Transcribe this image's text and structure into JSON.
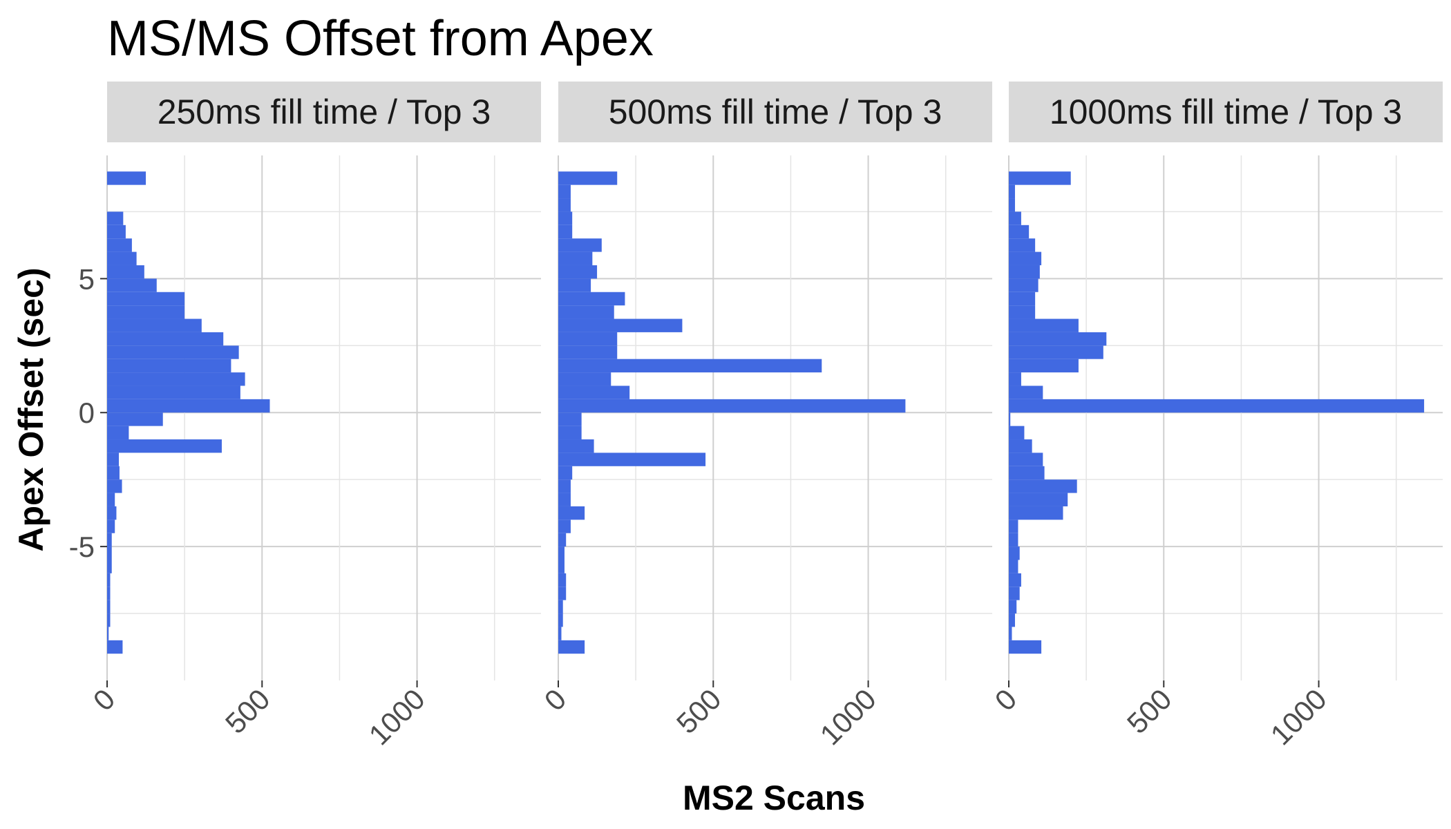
{
  "chart_data": {
    "type": "bar",
    "orientation": "horizontal",
    "title": "MS/MS Offset from Apex",
    "xlabel": "MS2 Scans",
    "ylabel": "Apex Offset (sec)",
    "xlim": [
      0,
      1400
    ],
    "ylim": [
      -10,
      9.6
    ],
    "x_ticks": [
      0,
      500,
      1000
    ],
    "x_tick_labels": [
      "0",
      "500",
      "1000"
    ],
    "y_ticks": [
      5,
      0,
      -5
    ],
    "y_tick_labels": [
      "5",
      "0",
      "-5"
    ],
    "bar_color": "#4169E1",
    "strip_color": "#D9D9D9",
    "grid": true,
    "bin_width": 0.5,
    "panels": [
      {
        "name": "250ms fill time / Top 3",
        "bins": [
          {
            "y": 8.75,
            "value": 125
          },
          {
            "y": 8.25,
            "value": 0
          },
          {
            "y": 7.75,
            "value": 0
          },
          {
            "y": 7.25,
            "value": 52
          },
          {
            "y": 6.75,
            "value": 60
          },
          {
            "y": 6.25,
            "value": 80
          },
          {
            "y": 5.75,
            "value": 95
          },
          {
            "y": 5.25,
            "value": 120
          },
          {
            "y": 4.75,
            "value": 160
          },
          {
            "y": 4.25,
            "value": 250
          },
          {
            "y": 3.75,
            "value": 250
          },
          {
            "y": 3.25,
            "value": 305
          },
          {
            "y": 2.75,
            "value": 375
          },
          {
            "y": 2.25,
            "value": 425
          },
          {
            "y": 1.75,
            "value": 400
          },
          {
            "y": 1.25,
            "value": 445
          },
          {
            "y": 0.75,
            "value": 430
          },
          {
            "y": 0.25,
            "value": 525
          },
          {
            "y": -0.25,
            "value": 180
          },
          {
            "y": -0.75,
            "value": 70
          },
          {
            "y": -1.25,
            "value": 370
          },
          {
            "y": -1.75,
            "value": 38
          },
          {
            "y": -2.25,
            "value": 40
          },
          {
            "y": -2.75,
            "value": 48
          },
          {
            "y": -3.25,
            "value": 25
          },
          {
            "y": -3.75,
            "value": 30
          },
          {
            "y": -4.25,
            "value": 25
          },
          {
            "y": -4.75,
            "value": 15
          },
          {
            "y": -5.25,
            "value": 15
          },
          {
            "y": -5.75,
            "value": 15
          },
          {
            "y": -6.25,
            "value": 10
          },
          {
            "y": -6.75,
            "value": 10
          },
          {
            "y": -7.25,
            "value": 10
          },
          {
            "y": -7.75,
            "value": 10
          },
          {
            "y": -8.25,
            "value": 5
          },
          {
            "y": -8.75,
            "value": 50
          }
        ]
      },
      {
        "name": "500ms fill time / Top 3",
        "bins": [
          {
            "y": 8.75,
            "value": 190
          },
          {
            "y": 8.25,
            "value": 40
          },
          {
            "y": 7.75,
            "value": 40
          },
          {
            "y": 7.25,
            "value": 45
          },
          {
            "y": 6.75,
            "value": 45
          },
          {
            "y": 6.25,
            "value": 140
          },
          {
            "y": 5.75,
            "value": 110
          },
          {
            "y": 5.25,
            "value": 125
          },
          {
            "y": 4.75,
            "value": 105
          },
          {
            "y": 4.25,
            "value": 215
          },
          {
            "y": 3.75,
            "value": 180
          },
          {
            "y": 3.25,
            "value": 400
          },
          {
            "y": 2.75,
            "value": 190
          },
          {
            "y": 2.25,
            "value": 190
          },
          {
            "y": 1.75,
            "value": 850
          },
          {
            "y": 1.25,
            "value": 170
          },
          {
            "y": 0.75,
            "value": 230
          },
          {
            "y": 0.25,
            "value": 1120
          },
          {
            "y": -0.25,
            "value": 75
          },
          {
            "y": -0.75,
            "value": 75
          },
          {
            "y": -1.25,
            "value": 115
          },
          {
            "y": -1.75,
            "value": 475
          },
          {
            "y": -2.25,
            "value": 45
          },
          {
            "y": -2.75,
            "value": 40
          },
          {
            "y": -3.25,
            "value": 40
          },
          {
            "y": -3.75,
            "value": 85
          },
          {
            "y": -4.25,
            "value": 40
          },
          {
            "y": -4.75,
            "value": 25
          },
          {
            "y": -5.25,
            "value": 20
          },
          {
            "y": -5.75,
            "value": 20
          },
          {
            "y": -6.25,
            "value": 25
          },
          {
            "y": -6.75,
            "value": 25
          },
          {
            "y": -7.25,
            "value": 15
          },
          {
            "y": -7.75,
            "value": 15
          },
          {
            "y": -8.25,
            "value": 10
          },
          {
            "y": -8.75,
            "value": 85
          }
        ]
      },
      {
        "name": "1000ms fill time / Top 3",
        "bins": [
          {
            "y": 8.75,
            "value": 200
          },
          {
            "y": 8.25,
            "value": 20
          },
          {
            "y": 7.75,
            "value": 20
          },
          {
            "y": 7.25,
            "value": 40
          },
          {
            "y": 6.75,
            "value": 65
          },
          {
            "y": 6.25,
            "value": 85
          },
          {
            "y": 5.75,
            "value": 105
          },
          {
            "y": 5.25,
            "value": 100
          },
          {
            "y": 4.75,
            "value": 95
          },
          {
            "y": 4.25,
            "value": 85
          },
          {
            "y": 3.75,
            "value": 85
          },
          {
            "y": 3.25,
            "value": 225
          },
          {
            "y": 2.75,
            "value": 315
          },
          {
            "y": 2.25,
            "value": 305
          },
          {
            "y": 1.75,
            "value": 225
          },
          {
            "y": 1.25,
            "value": 40
          },
          {
            "y": 0.75,
            "value": 110
          },
          {
            "y": 0.25,
            "value": 1340
          },
          {
            "y": -0.25,
            "value": 5
          },
          {
            "y": -0.75,
            "value": 50
          },
          {
            "y": -1.25,
            "value": 75
          },
          {
            "y": -1.75,
            "value": 110
          },
          {
            "y": -2.25,
            "value": 115
          },
          {
            "y": -2.75,
            "value": 220
          },
          {
            "y": -3.25,
            "value": 190
          },
          {
            "y": -3.75,
            "value": 175
          },
          {
            "y": -4.25,
            "value": 30
          },
          {
            "y": -4.75,
            "value": 30
          },
          {
            "y": -5.25,
            "value": 35
          },
          {
            "y": -5.75,
            "value": 30
          },
          {
            "y": -6.25,
            "value": 40
          },
          {
            "y": -6.75,
            "value": 35
          },
          {
            "y": -7.25,
            "value": 25
          },
          {
            "y": -7.75,
            "value": 20
          },
          {
            "y": -8.25,
            "value": 10
          },
          {
            "y": -8.75,
            "value": 105
          }
        ]
      }
    ]
  }
}
